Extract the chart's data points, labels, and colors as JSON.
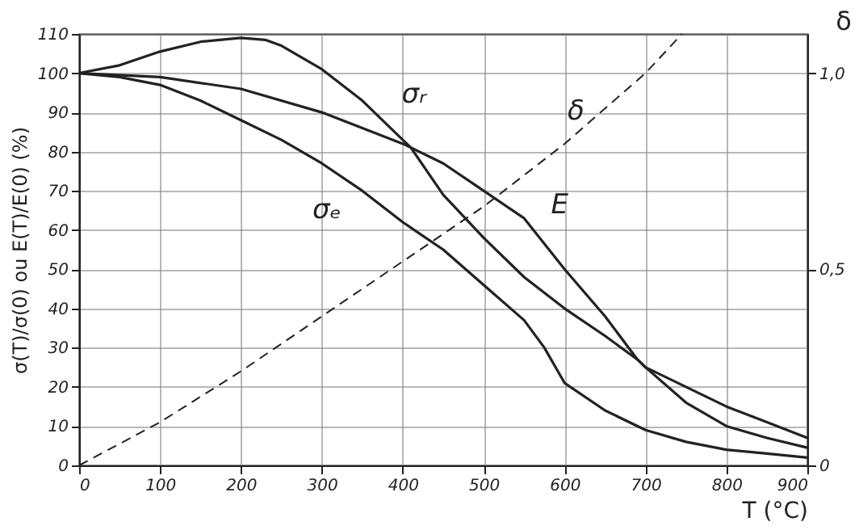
{
  "chart_data": {
    "type": "line",
    "xlabel": "T (°C)",
    "ylabel": "σ(T)/σ(0) ou E(T)/E(0) (%)",
    "y2label": "δ",
    "xlim": [
      0,
      900
    ],
    "xticks": [
      0,
      100,
      200,
      300,
      400,
      500,
      600,
      700,
      800,
      900
    ],
    "ylim": [
      0,
      110
    ],
    "yticks": [
      0,
      10,
      20,
      30,
      40,
      50,
      60,
      70,
      80,
      90,
      100,
      110
    ],
    "y2lim": [
      0,
      1.1
    ],
    "y2ticks": [
      0,
      {
        "value": 0.5,
        "label": "0,5"
      },
      {
        "value": 1.0,
        "label": "1,0"
      }
    ],
    "grid": true,
    "marker": "none",
    "series": [
      {
        "color": "#222222",
        "line_style": "solid",
        "x": [
          0,
          50,
          100,
          150,
          200,
          230,
          250,
          300,
          350,
          400,
          410,
          450,
          500,
          550,
          600,
          650,
          690,
          700,
          750,
          800,
          850,
          900
        ],
        "values": [
          100,
          102,
          105.5,
          108,
          109,
          108.5,
          107,
          101,
          93,
          83,
          81,
          69,
          58,
          48,
          40,
          33,
          27,
          25,
          20,
          15,
          11,
          7
        ]
      },
      {
        "color": "#222222",
        "line_style": "solid",
        "x": [
          0,
          100,
          200,
          300,
          350,
          400,
          450,
          500,
          550,
          600,
          650,
          690,
          700,
          750,
          800,
          850,
          900
        ],
        "values": [
          100,
          99,
          96,
          90,
          86,
          82,
          77,
          70,
          63,
          50,
          38,
          27,
          25,
          16,
          10,
          7,
          4.5
        ]
      },
      {
        "color": "#222222",
        "line_style": "solid",
        "x": [
          0,
          50,
          100,
          150,
          200,
          250,
          300,
          350,
          400,
          450,
          500,
          550,
          575,
          600,
          650,
          700,
          750,
          800,
          850,
          900
        ],
        "values": [
          100,
          99,
          97,
          93,
          88,
          83,
          77,
          70,
          62,
          55,
          46,
          37,
          30,
          21,
          14,
          9,
          6,
          4,
          3,
          2
        ]
      },
      {
        "color": "#222222",
        "line_style": "dashed",
        "axis": "y2",
        "x": [
          0,
          100,
          200,
          300,
          400,
          500,
          600,
          700,
          745
        ],
        "values": [
          0,
          0.11,
          0.24,
          0.38,
          0.52,
          0.66,
          0.82,
          1.0,
          1.1
        ]
      }
    ],
    "annotations": [
      {
        "text": "σᵣ",
        "x": 350,
        "y": 93
      },
      {
        "text": "E",
        "x": 550,
        "y": 63
      },
      {
        "text": "σₑ",
        "x": 350,
        "y": 70
      },
      {
        "text": "δ",
        "x": 650,
        "y": 91
      }
    ]
  }
}
